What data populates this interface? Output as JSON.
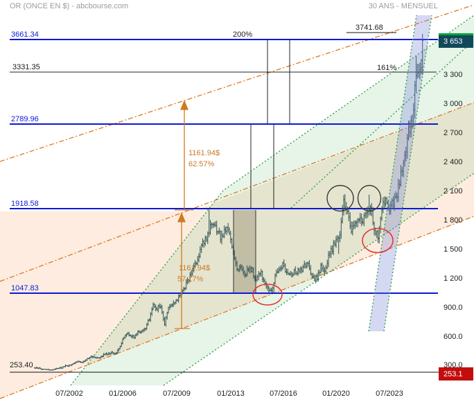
{
  "header": {
    "title": "OR (ONCE EN $) - abcbourse.com",
    "period": "30 ANS - MENSUEL"
  },
  "levels": {
    "l3661": "3661.34",
    "l3331": "3331.35",
    "l2790": "2789.96",
    "l1919": "1918.58",
    "l1048": "1047.83",
    "l253": "253.40",
    "l3742": "3741.68"
  },
  "fibs": {
    "p200": "200%",
    "p161": "161%"
  },
  "measures": {
    "m1": {
      "amount": "1161.94$",
      "pct": "62.57%"
    },
    "m2": {
      "amount": "1161.94$",
      "pct": "57.17%"
    }
  },
  "y_axis": {
    "ticks": [
      "3 300",
      "3 000",
      "2 700",
      "2 400",
      "2 100",
      "1 800",
      "1 500",
      "1 200",
      "900.0",
      "600.0",
      "300.0"
    ],
    "last_price": "3 653",
    "session_low": "253.1"
  },
  "x_axis": {
    "ticks": [
      "07/2002",
      "01/2006",
      "07/2009",
      "01/2013",
      "07/2016",
      "01/2020",
      "07/2023"
    ]
  },
  "chart_data": {
    "type": "candlestick",
    "variant": "monthly-ohlc-bars",
    "instrument": "OR (ONCE EN $)",
    "source": "abcbourse.com",
    "timeframe_label": "30 ANS - MENSUEL",
    "x_tick_labels": [
      "07/2002",
      "01/2006",
      "07/2009",
      "01/2013",
      "07/2016",
      "01/2020",
      "07/2023"
    ],
    "y_tick_values": [
      3300,
      3000,
      2700,
      2400,
      2100,
      1800,
      1500,
      1200,
      900,
      600,
      300
    ],
    "horizontal_levels": [
      3661.34,
      3331.35,
      2789.96,
      1918.58,
      1047.83,
      253.4
    ],
    "projection_level": 3741.68,
    "fib_extensions": [
      {
        "label": "200%",
        "level": 3661.34
      },
      {
        "label": "161%",
        "level": 3331.35
      }
    ],
    "last_price": 3653,
    "historic_low_marker": 253.1,
    "measured_moves": [
      {
        "amount_usd": 1161.94,
        "percent": 62.57
      },
      {
        "amount_usd": 1161.94,
        "percent": 57.17
      }
    ],
    "series": {
      "start": "2000-Q2",
      "interval": "quarterly-closes-usd",
      "closes": [
        280,
        277,
        265,
        266,
        258,
        267,
        278,
        282,
        302,
        305,
        318,
        348,
        330,
        355,
        385,
        400,
        388,
        392,
        420,
        425,
        435,
        430,
        470,
        570,
        640,
        615,
        600,
        650,
        665,
        680,
        790,
        925,
        895,
        915,
        730,
        920,
        925,
        955,
        1045,
        1080,
        1180,
        1245,
        1360,
        1430,
        1560,
        1630,
        1720,
        1740,
        1660,
        1620,
        1720,
        1660,
        1470,
        1310,
        1320,
        1245,
        1290,
        1280,
        1170,
        1280,
        1180,
        1095,
        1060,
        1230,
        1290,
        1350,
        1270,
        1250,
        1265,
        1270,
        1275,
        1345,
        1315,
        1200,
        1215,
        1320,
        1285,
        1415,
        1510,
        1590,
        1685,
        1975,
        1880,
        1710,
        1770,
        1815,
        1775,
        1900,
        1940,
        1720,
        1640,
        1930,
        1990,
        1925,
        1985,
        2045,
        2290,
        2445,
        2745,
        2800,
        3300,
        3290,
        3650
      ]
    },
    "notable_extremes": [
      {
        "t": 2008.83,
        "type": "low",
        "value": 705
      },
      {
        "t": 2011.67,
        "type": "high",
        "value": 1908
      },
      {
        "t": 2015.92,
        "type": "low",
        "value": 1047
      },
      {
        "t": 2016.5,
        "type": "high",
        "value": 1370
      },
      {
        "t": 2020.17,
        "type": "low",
        "value": 1455
      },
      {
        "t": 2020.58,
        "type": "high",
        "value": 2070
      },
      {
        "t": 2022.17,
        "type": "high",
        "value": 2065
      },
      {
        "t": 2022.75,
        "type": "low",
        "value": 1618
      },
      {
        "t": 2025.25,
        "type": "high",
        "value": 3495
      }
    ],
    "annotations": {
      "black_circles": "two circles on the 2020 and 2022 tops near 2070",
      "red_circles": [
        "2015 low at the 1047.83 support",
        "late-2022 pullback near 1620"
      ],
      "channels": [
        "orange dash-dot ascending channel",
        "green dotted ascending fan/channel",
        "steep blue-shaded channel on the 2024-2025 rally"
      ],
      "gray_box": "2013-2015 decline range between 1918.58 and 1047.83"
    }
  }
}
